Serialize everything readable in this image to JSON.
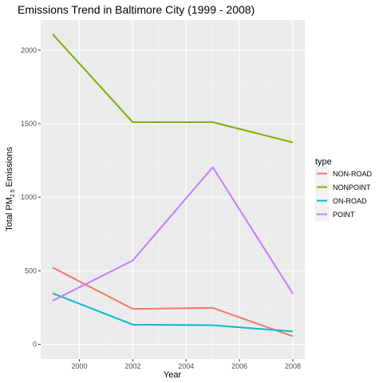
{
  "chart_data": {
    "type": "line",
    "title": "Emissions Trend in Baltimore City (1999 - 2008)",
    "xlabel": "Year",
    "ylabel_main": "Total PM",
    "ylabel_sub": "2.5",
    "ylabel_rest": " Emissions",
    "x": [
      1999,
      2002,
      2005,
      2008
    ],
    "xlim": [
      1998.55,
      2008.45
    ],
    "ylim": [
      -100,
      2205
    ],
    "x_ticks": [
      2000,
      2002,
      2004,
      2006,
      2008
    ],
    "y_ticks": [
      0,
      500,
      1000,
      1500,
      2000
    ],
    "grid": true,
    "legend_title": "type",
    "legend_position": "right",
    "series": [
      {
        "name": "NON-ROAD",
        "color": "#F8766D",
        "values": [
          522,
          241,
          248,
          55
        ]
      },
      {
        "name": "NONPOINT",
        "color": "#7CAE00",
        "values": [
          2108,
          1510,
          1510,
          1373
        ]
      },
      {
        "name": "ON-ROAD",
        "color": "#00BFC4",
        "values": [
          347,
          134,
          130,
          88
        ]
      },
      {
        "name": "POINT",
        "color": "#C77CFF",
        "values": [
          297,
          570,
          1204,
          345
        ]
      }
    ]
  }
}
